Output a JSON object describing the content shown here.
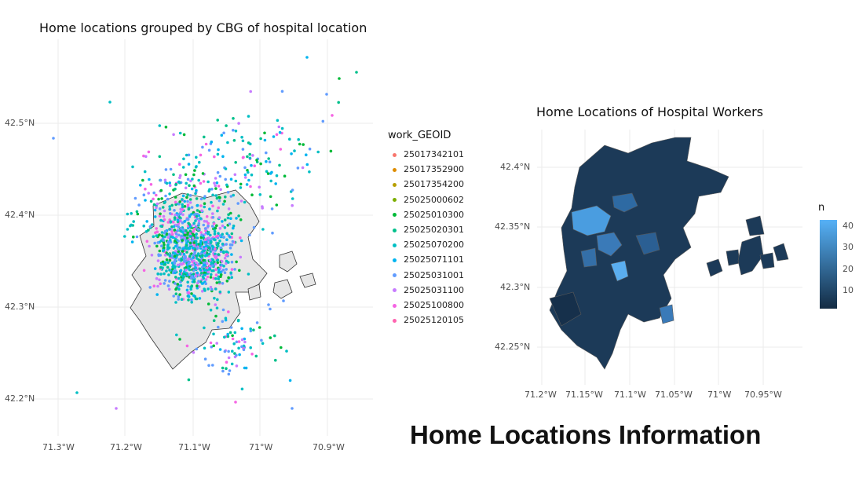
{
  "left_map": {
    "title": "Home locations grouped by CBG of hospital location",
    "y_ticks": [
      "42.5°N",
      "42.4°N",
      "42.3°N",
      "42.2°N"
    ],
    "x_ticks": [
      "71.3°W",
      "71.2°W",
      "71.1°W",
      "71°W",
      "70.9°W"
    ],
    "legend_title": "work_GEOID",
    "legend": [
      {
        "label": "25017342101",
        "color": "#F8766D"
      },
      {
        "label": "25017352900",
        "color": "#DE8C00"
      },
      {
        "label": "25017354200",
        "color": "#B79F00"
      },
      {
        "label": "25025000602",
        "color": "#7CAE00"
      },
      {
        "label": "25025010300",
        "color": "#00BA38"
      },
      {
        "label": "25025020301",
        "color": "#00C08B"
      },
      {
        "label": "25025070200",
        "color": "#00BFC4"
      },
      {
        "label": "25025071101",
        "color": "#00B4F0"
      },
      {
        "label": "25025031001",
        "color": "#619CFF"
      },
      {
        "label": "25025031100",
        "color": "#C77CFF"
      },
      {
        "label": "25025100800",
        "color": "#F564E3"
      },
      {
        "label": "25025120105",
        "color": "#FF64B0"
      }
    ]
  },
  "right_map": {
    "title": "Home Locations of Hospital Workers",
    "y_ticks": [
      "42.4°N",
      "42.35°N",
      "42.3°N",
      "42.25°N"
    ],
    "x_ticks": [
      "71.2°W",
      "71.15°W",
      "71.1°W",
      "71.05°W",
      "71°W",
      "70.95°W"
    ],
    "legend_title": "n",
    "legend_ticks": [
      "40",
      "30",
      "20",
      "10"
    ],
    "color_low": "#132B43",
    "color_high": "#56B1F7"
  },
  "main_title": "Home Locations Information"
}
